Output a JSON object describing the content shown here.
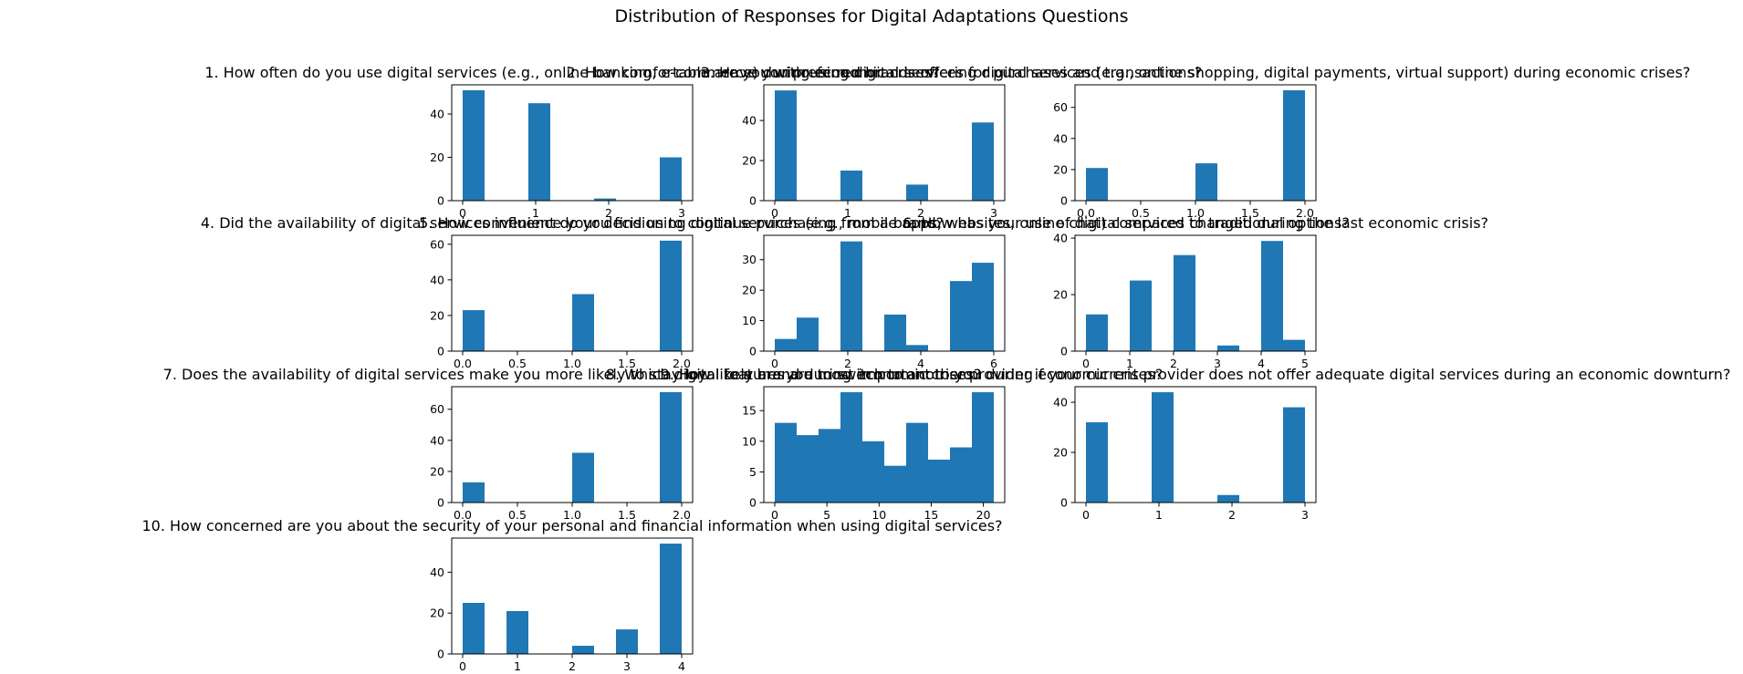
{
  "title": "Distribution of Responses for Digital Adaptations Questions",
  "chart_data": [
    {
      "type": "histogram",
      "title": "1. How often do you use digital services (e.g., online banking, e-commerce) during economic crises?",
      "color": "#1f77b4",
      "bins": [
        0,
        0.3,
        0.6,
        0.9,
        1.2,
        1.5,
        1.8,
        2.1,
        2.4,
        2.7,
        3
      ],
      "values": [
        51,
        0,
        0,
        45,
        0,
        0,
        1,
        0,
        0,
        20
      ],
      "xlim": [
        -0.15,
        3.15
      ],
      "ylim": [
        0,
        53.5
      ],
      "xticks": [
        0,
        1,
        2,
        3
      ],
      "yticks": [
        0,
        20,
        40
      ]
    },
    {
      "type": "histogram",
      "title": "2. How comfortable are you with using digital services for purchases and transactions?",
      "color": "#1f77b4",
      "bins": [
        0,
        0.3,
        0.6,
        0.9,
        1.2,
        1.5,
        1.8,
        2.1,
        2.4,
        2.7,
        3
      ],
      "values": [
        55,
        0,
        0,
        15,
        0,
        0,
        8,
        0,
        0,
        39
      ],
      "xlim": [
        -0.15,
        3.15
      ],
      "ylim": [
        0,
        57.8
      ],
      "xticks": [
        0,
        1,
        2,
        3
      ],
      "yticks": [
        0,
        20,
        40
      ]
    },
    {
      "type": "histogram",
      "title": "3. Have you preferred brands offering digital services (e.g., online shopping, digital payments, virtual support) during economic crises?",
      "color": "#1f77b4",
      "bins": [
        0,
        0.2,
        0.4,
        0.6,
        0.8,
        1,
        1.2,
        1.4,
        1.6,
        1.8,
        2
      ],
      "values": [
        21,
        0,
        0,
        0,
        0,
        24,
        0,
        0,
        0,
        71
      ],
      "xlim": [
        -0.1,
        2.1
      ],
      "ylim": [
        0,
        74.5
      ],
      "xticks": [
        {
          "value": 0,
          "label": "0.0"
        },
        {
          "value": 0.5,
          "label": "0.5"
        },
        {
          "value": 1,
          "label": "1.0"
        },
        {
          "value": 1.5,
          "label": "1.5"
        },
        {
          "value": 2,
          "label": "2.0"
        }
      ],
      "yticks": [
        0,
        20,
        40,
        60
      ]
    },
    {
      "type": "histogram",
      "title": "4. Did the availability of digital services influence your decision to continue purchasing from a brand?",
      "color": "#1f77b4",
      "bins": [
        0,
        0.2,
        0.4,
        0.6,
        0.8,
        1,
        1.2,
        1.4,
        1.6,
        1.8,
        2
      ],
      "values": [
        23,
        0,
        0,
        0,
        0,
        32,
        0,
        0,
        0,
        62
      ],
      "xlim": [
        -0.1,
        2.1
      ],
      "ylim": [
        0,
        65
      ],
      "xticks": [
        {
          "value": 0,
          "label": "0.0"
        },
        {
          "value": 0.5,
          "label": "0.5"
        },
        {
          "value": 1,
          "label": "1.0"
        },
        {
          "value": 1.5,
          "label": "1.5"
        },
        {
          "value": 2,
          "label": "2.0"
        }
      ],
      "yticks": [
        0,
        20,
        40,
        60
      ]
    },
    {
      "type": "histogram",
      "title": "5. How convenient do you find using digital services (e.g., mobile apps, websites, online chat) compared to traditional options?",
      "color": "#1f77b4",
      "bins": [
        0,
        0.6,
        1.2,
        1.8,
        2.4,
        3,
        3.6,
        4.2,
        4.8,
        5.4,
        6
      ],
      "values": [
        4,
        11,
        0,
        36,
        0,
        12,
        2,
        0,
        23,
        29
      ],
      "xlim": [
        -0.3,
        6.3
      ],
      "ylim": [
        0,
        38
      ],
      "xticks": [
        0,
        2,
        4,
        6
      ],
      "yticks": [
        0,
        10,
        20,
        30
      ]
    },
    {
      "type": "histogram",
      "title": "6. How has your use of digital services changed during the last economic crisis?",
      "color": "#1f77b4",
      "bins": [
        0,
        0.5,
        1,
        1.5,
        2,
        2.5,
        3,
        3.5,
        4,
        4.5,
        5
      ],
      "values": [
        13,
        0,
        25,
        0,
        34,
        0,
        2,
        0,
        39,
        4
      ],
      "xlim": [
        -0.25,
        5.25
      ],
      "ylim": [
        0,
        41
      ],
      "xticks": [
        0,
        1,
        2,
        3,
        4,
        5
      ],
      "yticks": [
        0,
        20,
        40
      ]
    },
    {
      "type": "histogram",
      "title": "7. Does the availability of digital services make you more likely to stay loyal to a brand during economic crises?",
      "color": "#1f77b4",
      "bins": [
        0,
        0.2,
        0.4,
        0.6,
        0.8,
        1,
        1.2,
        1.4,
        1.6,
        1.8,
        2
      ],
      "values": [
        13,
        0,
        0,
        0,
        0,
        32,
        0,
        0,
        0,
        71
      ],
      "xlim": [
        -0.1,
        2.1
      ],
      "ylim": [
        0,
        74.5
      ],
      "xticks": [
        {
          "value": 0,
          "label": "0.0"
        },
        {
          "value": 0.5,
          "label": "0.5"
        },
        {
          "value": 1,
          "label": "1.0"
        },
        {
          "value": 1.5,
          "label": "1.5"
        },
        {
          "value": 2,
          "label": "2.0"
        }
      ],
      "yticks": [
        0,
        20,
        40,
        60
      ]
    },
    {
      "type": "histogram",
      "title": "8. Which digital features are most important to you during economic crises?",
      "color": "#1f77b4",
      "bins": [
        0,
        2.1,
        4.2,
        6.3,
        8.4,
        10.5,
        12.6,
        14.7,
        16.8,
        18.9,
        21
      ],
      "values": [
        13,
        11,
        12,
        18,
        10,
        6,
        13,
        7,
        9,
        18
      ],
      "xlim": [
        -1.05,
        22.05
      ],
      "ylim": [
        0,
        18.9
      ],
      "xticks": [
        0,
        5,
        10,
        15,
        20
      ],
      "yticks": [
        0,
        5,
        10,
        15
      ]
    },
    {
      "type": "histogram",
      "title": "9. How likely are you to switch to another provider if your current provider does not offer adequate digital services during an economic downturn?",
      "color": "#1f77b4",
      "bins": [
        0,
        0.3,
        0.6,
        0.9,
        1.2,
        1.5,
        1.8,
        2.1,
        2.4,
        2.7,
        3
      ],
      "values": [
        32,
        0,
        0,
        44,
        0,
        0,
        3,
        0,
        0,
        38
      ],
      "xlim": [
        -0.15,
        3.15
      ],
      "ylim": [
        0,
        46.2
      ],
      "xticks": [
        0,
        1,
        2,
        3
      ],
      "yticks": [
        0,
        20,
        40
      ]
    },
    {
      "type": "histogram",
      "title": "10. How concerned are you about the security of your personal and financial information when using digital services?",
      "color": "#1f77b4",
      "bins": [
        0,
        0.4,
        0.8,
        1.2,
        1.6,
        2,
        2.4,
        2.8,
        3.2,
        3.6,
        4
      ],
      "values": [
        25,
        0,
        21,
        0,
        0,
        4,
        0,
        12,
        0,
        54
      ],
      "xlim": [
        -0.2,
        4.2
      ],
      "ylim": [
        0,
        56.7
      ],
      "xticks": [
        0,
        1,
        2,
        3,
        4
      ],
      "yticks": [
        0,
        20,
        40
      ]
    }
  ]
}
